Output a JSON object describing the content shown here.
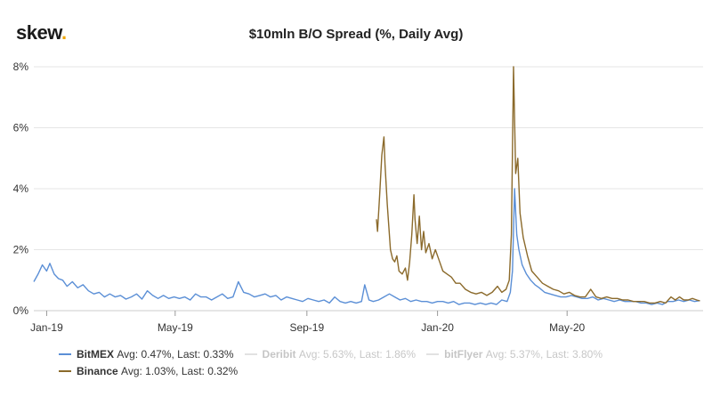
{
  "logo": {
    "text": "skew",
    "dot": "."
  },
  "chart_data": {
    "type": "line",
    "title": "$10mln B/O Spread (%, Daily Avg)",
    "xlabel": "",
    "ylabel": "",
    "x_axis": {
      "start": "2018-12-20",
      "end": "2020-09-05",
      "ticks": [
        {
          "label": "Jan-19",
          "date": "2019-01-01"
        },
        {
          "label": "May-19",
          "date": "2019-05-01"
        },
        {
          "label": "Sep-19",
          "date": "2019-09-01"
        },
        {
          "label": "Jan-20",
          "date": "2020-01-01"
        },
        {
          "label": "May-20",
          "date": "2020-05-01"
        }
      ]
    },
    "y_axis": {
      "ylim": [
        0,
        8
      ],
      "ticks": [
        0,
        2,
        4,
        6,
        8
      ],
      "tick_labels": [
        "0%",
        "2%",
        "4%",
        "6%",
        "8%"
      ]
    },
    "grid": "horizontal",
    "legend_position": "bottom",
    "series": [
      {
        "name": "BitMEX",
        "stats": "Avg: 0.47%, Last: 0.33%",
        "color": "#5b8fd6",
        "visible": true,
        "points": [
          [
            "2018-12-20",
            0.95
          ],
          [
            "2018-12-24",
            1.2
          ],
          [
            "2018-12-28",
            1.5
          ],
          [
            "2019-01-01",
            1.3
          ],
          [
            "2019-01-04",
            1.55
          ],
          [
            "2019-01-08",
            1.2
          ],
          [
            "2019-01-12",
            1.05
          ],
          [
            "2019-01-16",
            1.0
          ],
          [
            "2019-01-20",
            0.8
          ],
          [
            "2019-01-25",
            0.95
          ],
          [
            "2019-01-30",
            0.75
          ],
          [
            "2019-02-04",
            0.85
          ],
          [
            "2019-02-09",
            0.65
          ],
          [
            "2019-02-14",
            0.55
          ],
          [
            "2019-02-19",
            0.6
          ],
          [
            "2019-02-24",
            0.45
          ],
          [
            "2019-03-01",
            0.55
          ],
          [
            "2019-03-06",
            0.45
          ],
          [
            "2019-03-11",
            0.5
          ],
          [
            "2019-03-16",
            0.38
          ],
          [
            "2019-03-21",
            0.45
          ],
          [
            "2019-03-26",
            0.55
          ],
          [
            "2019-03-31",
            0.38
          ],
          [
            "2019-04-05",
            0.65
          ],
          [
            "2019-04-10",
            0.5
          ],
          [
            "2019-04-15",
            0.4
          ],
          [
            "2019-04-20",
            0.5
          ],
          [
            "2019-04-25",
            0.4
          ],
          [
            "2019-04-30",
            0.45
          ],
          [
            "2019-05-05",
            0.4
          ],
          [
            "2019-05-10",
            0.45
          ],
          [
            "2019-05-15",
            0.35
          ],
          [
            "2019-05-20",
            0.55
          ],
          [
            "2019-05-25",
            0.45
          ],
          [
            "2019-05-30",
            0.45
          ],
          [
            "2019-06-04",
            0.35
          ],
          [
            "2019-06-09",
            0.45
          ],
          [
            "2019-06-14",
            0.55
          ],
          [
            "2019-06-19",
            0.4
          ],
          [
            "2019-06-24",
            0.45
          ],
          [
            "2019-06-29",
            0.95
          ],
          [
            "2019-07-04",
            0.6
          ],
          [
            "2019-07-09",
            0.55
          ],
          [
            "2019-07-14",
            0.45
          ],
          [
            "2019-07-19",
            0.5
          ],
          [
            "2019-07-24",
            0.55
          ],
          [
            "2019-07-29",
            0.45
          ],
          [
            "2019-08-03",
            0.5
          ],
          [
            "2019-08-08",
            0.35
          ],
          [
            "2019-08-13",
            0.45
          ],
          [
            "2019-08-18",
            0.4
          ],
          [
            "2019-08-23",
            0.35
          ],
          [
            "2019-08-28",
            0.3
          ],
          [
            "2019-09-02",
            0.4
          ],
          [
            "2019-09-07",
            0.35
          ],
          [
            "2019-09-12",
            0.3
          ],
          [
            "2019-09-17",
            0.35
          ],
          [
            "2019-09-22",
            0.25
          ],
          [
            "2019-09-27",
            0.45
          ],
          [
            "2019-10-02",
            0.3
          ],
          [
            "2019-10-07",
            0.25
          ],
          [
            "2019-10-12",
            0.3
          ],
          [
            "2019-10-17",
            0.25
          ],
          [
            "2019-10-22",
            0.3
          ],
          [
            "2019-10-25",
            0.85
          ],
          [
            "2019-10-29",
            0.35
          ],
          [
            "2019-11-02",
            0.3
          ],
          [
            "2019-11-07",
            0.35
          ],
          [
            "2019-11-12",
            0.45
          ],
          [
            "2019-11-17",
            0.55
          ],
          [
            "2019-11-22",
            0.45
          ],
          [
            "2019-11-27",
            0.35
          ],
          [
            "2019-12-02",
            0.4
          ],
          [
            "2019-12-07",
            0.3
          ],
          [
            "2019-12-12",
            0.35
          ],
          [
            "2019-12-17",
            0.3
          ],
          [
            "2019-12-22",
            0.3
          ],
          [
            "2019-12-27",
            0.25
          ],
          [
            "2020-01-01",
            0.3
          ],
          [
            "2020-01-06",
            0.3
          ],
          [
            "2020-01-11",
            0.25
          ],
          [
            "2020-01-16",
            0.3
          ],
          [
            "2020-01-21",
            0.2
          ],
          [
            "2020-01-26",
            0.25
          ],
          [
            "2020-01-31",
            0.25
          ],
          [
            "2020-02-05",
            0.2
          ],
          [
            "2020-02-10",
            0.25
          ],
          [
            "2020-02-15",
            0.2
          ],
          [
            "2020-02-20",
            0.25
          ],
          [
            "2020-02-25",
            0.2
          ],
          [
            "2020-03-01",
            0.35
          ],
          [
            "2020-03-06",
            0.3
          ],
          [
            "2020-03-09",
            0.6
          ],
          [
            "2020-03-11",
            1.3
          ],
          [
            "2020-03-13",
            4.0
          ],
          [
            "2020-03-15",
            2.5
          ],
          [
            "2020-03-17",
            2.0
          ],
          [
            "2020-03-20",
            1.5
          ],
          [
            "2020-03-24",
            1.2
          ],
          [
            "2020-03-28",
            1.0
          ],
          [
            "2020-04-01",
            0.85
          ],
          [
            "2020-04-05",
            0.75
          ],
          [
            "2020-04-10",
            0.6
          ],
          [
            "2020-04-15",
            0.55
          ],
          [
            "2020-04-20",
            0.5
          ],
          [
            "2020-04-25",
            0.45
          ],
          [
            "2020-04-30",
            0.45
          ],
          [
            "2020-05-05",
            0.5
          ],
          [
            "2020-05-10",
            0.45
          ],
          [
            "2020-05-15",
            0.4
          ],
          [
            "2020-05-20",
            0.4
          ],
          [
            "2020-05-25",
            0.45
          ],
          [
            "2020-05-30",
            0.35
          ],
          [
            "2020-06-04",
            0.4
          ],
          [
            "2020-06-09",
            0.35
          ],
          [
            "2020-06-14",
            0.3
          ],
          [
            "2020-06-19",
            0.35
          ],
          [
            "2020-06-24",
            0.3
          ],
          [
            "2020-06-29",
            0.3
          ],
          [
            "2020-07-04",
            0.3
          ],
          [
            "2020-07-09",
            0.25
          ],
          [
            "2020-07-14",
            0.25
          ],
          [
            "2020-07-19",
            0.2
          ],
          [
            "2020-07-24",
            0.25
          ],
          [
            "2020-07-29",
            0.2
          ],
          [
            "2020-08-03",
            0.3
          ],
          [
            "2020-08-08",
            0.3
          ],
          [
            "2020-08-13",
            0.35
          ],
          [
            "2020-08-18",
            0.3
          ],
          [
            "2020-08-23",
            0.35
          ],
          [
            "2020-08-28",
            0.3
          ],
          [
            "2020-09-02",
            0.33
          ]
        ]
      },
      {
        "name": "Deribit",
        "stats": "Avg: 5.63%, Last: 1.86%",
        "color": "#999999",
        "visible": false,
        "points": []
      },
      {
        "name": "bitFlyer",
        "stats": "Avg: 5.37%, Last: 3.80%",
        "color": "#999999",
        "visible": false,
        "points": []
      },
      {
        "name": "Binance",
        "stats": "Avg: 1.03%, Last: 0.32%",
        "color": "#8b6a2b",
        "visible": true,
        "points": [
          [
            "2019-11-05",
            3.0
          ],
          [
            "2019-11-06",
            2.6
          ],
          [
            "2019-11-08",
            3.8
          ],
          [
            "2019-11-10",
            5.1
          ],
          [
            "2019-11-12",
            5.7
          ],
          [
            "2019-11-13",
            4.8
          ],
          [
            "2019-11-15",
            3.5
          ],
          [
            "2019-11-18",
            2.0
          ],
          [
            "2019-11-20",
            1.7
          ],
          [
            "2019-11-22",
            1.6
          ],
          [
            "2019-11-24",
            1.8
          ],
          [
            "2019-11-26",
            1.3
          ],
          [
            "2019-11-29",
            1.2
          ],
          [
            "2019-12-02",
            1.4
          ],
          [
            "2019-12-04",
            1.0
          ],
          [
            "2019-12-06",
            1.6
          ],
          [
            "2019-12-08",
            2.5
          ],
          [
            "2019-12-10",
            3.8
          ],
          [
            "2019-12-11",
            3.0
          ],
          [
            "2019-12-13",
            2.2
          ],
          [
            "2019-12-15",
            3.1
          ],
          [
            "2019-12-17",
            2.0
          ],
          [
            "2019-12-19",
            2.6
          ],
          [
            "2019-12-21",
            1.9
          ],
          [
            "2019-12-24",
            2.2
          ],
          [
            "2019-12-27",
            1.7
          ],
          [
            "2019-12-30",
            2.0
          ],
          [
            "2020-01-03",
            1.6
          ],
          [
            "2020-01-06",
            1.3
          ],
          [
            "2020-01-10",
            1.2
          ],
          [
            "2020-01-14",
            1.1
          ],
          [
            "2020-01-18",
            0.9
          ],
          [
            "2020-01-22",
            0.9
          ],
          [
            "2020-01-27",
            0.7
          ],
          [
            "2020-02-01",
            0.6
          ],
          [
            "2020-02-06",
            0.55
          ],
          [
            "2020-02-11",
            0.6
          ],
          [
            "2020-02-16",
            0.5
          ],
          [
            "2020-02-21",
            0.6
          ],
          [
            "2020-02-26",
            0.8
          ],
          [
            "2020-03-01",
            0.6
          ],
          [
            "2020-03-05",
            0.7
          ],
          [
            "2020-03-08",
            1.0
          ],
          [
            "2020-03-10",
            2.5
          ],
          [
            "2020-03-12",
            8.0
          ],
          [
            "2020-03-14",
            4.5
          ],
          [
            "2020-03-16",
            5.0
          ],
          [
            "2020-03-18",
            3.2
          ],
          [
            "2020-03-21",
            2.4
          ],
          [
            "2020-03-25",
            1.8
          ],
          [
            "2020-03-29",
            1.3
          ],
          [
            "2020-04-03",
            1.1
          ],
          [
            "2020-04-08",
            0.9
          ],
          [
            "2020-04-13",
            0.8
          ],
          [
            "2020-04-18",
            0.7
          ],
          [
            "2020-04-23",
            0.65
          ],
          [
            "2020-04-28",
            0.55
          ],
          [
            "2020-05-03",
            0.6
          ],
          [
            "2020-05-08",
            0.5
          ],
          [
            "2020-05-13",
            0.45
          ],
          [
            "2020-05-18",
            0.45
          ],
          [
            "2020-05-23",
            0.7
          ],
          [
            "2020-05-28",
            0.45
          ],
          [
            "2020-06-02",
            0.4
          ],
          [
            "2020-06-07",
            0.45
          ],
          [
            "2020-06-12",
            0.4
          ],
          [
            "2020-06-17",
            0.4
          ],
          [
            "2020-06-22",
            0.35
          ],
          [
            "2020-06-27",
            0.35
          ],
          [
            "2020-07-02",
            0.3
          ],
          [
            "2020-07-07",
            0.3
          ],
          [
            "2020-07-12",
            0.3
          ],
          [
            "2020-07-17",
            0.25
          ],
          [
            "2020-07-22",
            0.25
          ],
          [
            "2020-07-27",
            0.3
          ],
          [
            "2020-08-01",
            0.25
          ],
          [
            "2020-08-06",
            0.45
          ],
          [
            "2020-08-10",
            0.35
          ],
          [
            "2020-08-14",
            0.45
          ],
          [
            "2020-08-18",
            0.35
          ],
          [
            "2020-08-22",
            0.35
          ],
          [
            "2020-08-26",
            0.4
          ],
          [
            "2020-08-30",
            0.35
          ],
          [
            "2020-09-02",
            0.32
          ]
        ]
      }
    ]
  }
}
